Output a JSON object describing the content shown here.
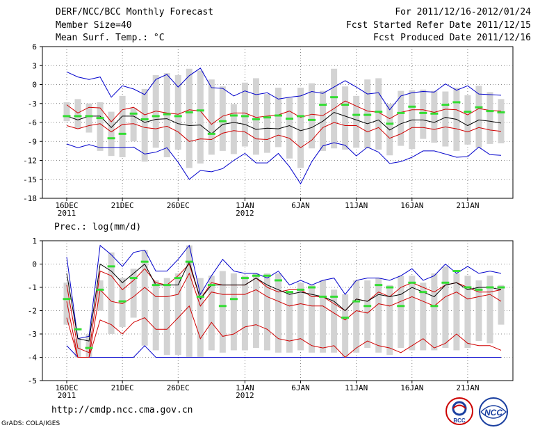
{
  "header": {
    "title": "DERF/NCC/BCC Monthly Forecast",
    "member_size": "Member Size=40",
    "variable": "Mean Surf. Temp.: °C",
    "period": "For 2011/12/16-2012/01/24",
    "started": "Fcst Started Refer Date 2011/12/15",
    "produced": "Fcst Produced Date 2011/12/16"
  },
  "footer": {
    "url": "http://cmdp.ncc.cma.gov.cn",
    "credit": "GrADS: COLA/IGES",
    "logo_left_text": "BCC",
    "logo_right_text": "NCC"
  },
  "colors": {
    "range": "#0000cc",
    "quartile": "#d00000",
    "mean": "#000000",
    "obs": "#33dd33",
    "box": "#d3d3d3",
    "grid": "#666666"
  },
  "chart_data": [
    {
      "type": "box",
      "title": "",
      "ylabel": "Mean Surf. Temp.: °C",
      "ylim": [
        -18,
        6
      ],
      "yticks": [
        6,
        3,
        0,
        -3,
        -6,
        -9,
        -12,
        -15,
        -18
      ],
      "x_tick_days": [
        0,
        5,
        10,
        16,
        21,
        26,
        31,
        36
      ],
      "x_ticklabels": [
        {
          "text": "16DEC",
          "sub": "2011"
        },
        {
          "text": "21DEC",
          "sub": ""
        },
        {
          "text": "26DEC",
          "sub": ""
        },
        {
          "text": "1JAN",
          "sub": "2012"
        },
        {
          "text": "6JAN",
          "sub": ""
        },
        {
          "text": "11JAN",
          "sub": ""
        },
        {
          "text": "16JAN",
          "sub": ""
        },
        {
          "text": "21JAN",
          "sub": ""
        }
      ],
      "series": [
        {
          "name": "max",
          "values": [
            2.0,
            1.2,
            0.8,
            1.2,
            -2.0,
            -0.2,
            -0.7,
            -1.6,
            0.8,
            1.6,
            -0.4,
            1.4,
            2.6,
            -0.5,
            -0.6,
            -1.8,
            -1.0,
            -1.6,
            -1.3,
            -2.3,
            -2.0,
            -1.8,
            -1.1,
            -1.4,
            -0.4,
            0.6,
            -0.4,
            -1.5,
            -1.3,
            -4.0,
            -1.8,
            -1.3,
            -1.1,
            -1.2,
            0.1,
            -0.9,
            -0.2,
            -1.5,
            -1.6,
            -1.7
          ]
        },
        {
          "name": "upper_quartile",
          "values": [
            -3.2,
            -4.5,
            -3.6,
            -3.7,
            -5.9,
            -4.0,
            -3.6,
            -4.8,
            -4.2,
            -4.5,
            -4.7,
            -4.0,
            -4.2,
            -6.3,
            -5.0,
            -4.5,
            -4.5,
            -5.2,
            -5.0,
            -4.8,
            -4.2,
            -5.2,
            -4.7,
            -4.9,
            -3.8,
            -2.6,
            -3.4,
            -4.2,
            -4.4,
            -5.4,
            -4.4,
            -4.0,
            -4.0,
            -4.4,
            -3.9,
            -4.0,
            -4.8,
            -3.8,
            -4.1,
            -4.2
          ]
        },
        {
          "name": "mean",
          "values": [
            -5.0,
            -5.6,
            -5.0,
            -5.0,
            -6.8,
            -5.0,
            -5.0,
            -6.0,
            -5.5,
            -5.4,
            -6.2,
            -6.5,
            -6.4,
            -7.8,
            -6.3,
            -6.0,
            -6.3,
            -7.1,
            -6.9,
            -7.0,
            -6.5,
            -7.3,
            -6.8,
            -5.8,
            -4.4,
            -5.0,
            -5.6,
            -6.2,
            -5.6,
            -7.2,
            -6.2,
            -5.6,
            -5.6,
            -6.0,
            -5.2,
            -5.5,
            -6.5,
            -5.6,
            -5.8,
            -6.1
          ]
        },
        {
          "name": "lower_quartile",
          "values": [
            -6.5,
            -7.0,
            -6.5,
            -6.2,
            -7.5,
            -6.3,
            -6.2,
            -6.8,
            -7.0,
            -6.6,
            -7.5,
            -9.0,
            -8.6,
            -8.7,
            -7.7,
            -7.3,
            -7.5,
            -8.6,
            -8.7,
            -8.0,
            -8.5,
            -10.0,
            -8.8,
            -6.8,
            -6.0,
            -6.5,
            -6.5,
            -7.5,
            -6.8,
            -8.5,
            -7.8,
            -6.8,
            -6.8,
            -7.1,
            -6.7,
            -7.0,
            -7.5,
            -6.8,
            -7.2,
            -7.4
          ]
        },
        {
          "name": "min",
          "values": [
            -9.4,
            -10.0,
            -9.5,
            -10.0,
            -10.0,
            -10.0,
            -9.9,
            -11.0,
            -10.7,
            -10.0,
            -12.3,
            -15.0,
            -13.6,
            -13.8,
            -13.3,
            -12.0,
            -10.9,
            -12.4,
            -12.4,
            -10.9,
            -13.0,
            -15.7,
            -12.2,
            -9.7,
            -9.2,
            -9.6,
            -11.3,
            -9.9,
            -10.7,
            -12.5,
            -12.2,
            -11.5,
            -10.5,
            -10.5,
            -11.0,
            -11.5,
            -11.4,
            -9.9,
            -11.1,
            -11.2
          ]
        },
        {
          "name": "observed",
          "values": [
            -5.0,
            -5.0,
            -5.0,
            -5.3,
            -8.5,
            -7.8,
            -4.6,
            -5.5,
            -5.0,
            -4.7,
            -5.0,
            -4.4,
            -4.1,
            -7.8,
            -5.8,
            -4.9,
            -5.0,
            -5.5,
            -5.2,
            -4.9,
            -5.4,
            -5.0,
            -5.6,
            -3.2,
            -2.0,
            -3.2,
            -4.8,
            -4.8,
            -4.3,
            -6.2,
            -4.5,
            -3.5,
            -4.5,
            -4.6,
            -3.2,
            -2.8,
            -4.3,
            -3.6,
            -4.2,
            -4.4
          ]
        },
        {
          "name": "box_top",
          "values": [
            -2.8,
            -2.3,
            -3.0,
            -2.8,
            -4.3,
            -1.8,
            -3.7,
            -0.7,
            1.5,
            1.8,
            1.5,
            2.5,
            2.2,
            0.8,
            -0.3,
            -3.1,
            0.3,
            1.0,
            -1.5,
            -0.5,
            -2.1,
            -0.5,
            0.2,
            -1.0,
            2.5,
            -0.3,
            -1.8,
            0.8,
            1.0,
            -3.1,
            -1.0,
            -0.9,
            -0.8,
            -1.0,
            -1.1,
            -0.5,
            -1.7,
            -0.2,
            -1.2,
            -2.3
          ]
        },
        {
          "name": "box_bottom",
          "values": [
            -5.8,
            -7.0,
            -7.6,
            -10.5,
            -11.3,
            -11.5,
            -9.0,
            -12.2,
            -10.0,
            -11.5,
            -10.3,
            -13.2,
            -12.5,
            -11.1,
            -10.5,
            -11.0,
            -9.8,
            -11.1,
            -10.8,
            -9.9,
            -11.7,
            -13.2,
            -10.1,
            -10.5,
            -10.1,
            -10.3,
            -10.0,
            -10.1,
            -10.3,
            -11.2,
            -9.7,
            -10.2,
            -8.6,
            -9.2,
            -9.8,
            -10.5,
            -9.5,
            -10.0,
            -9.4,
            -9.3
          ]
        }
      ]
    },
    {
      "type": "box",
      "title": "Prec.: log(mm/d)",
      "ylabel": "Prec.: log(mm/d)",
      "ylim": [
        -5,
        1
      ],
      "yticks": [
        1,
        0,
        -1,
        -2,
        -3,
        -4,
        -5
      ],
      "x_tick_days": [
        0,
        5,
        10,
        16,
        21,
        26,
        31,
        36
      ],
      "x_ticklabels": [
        {
          "text": "16DEC",
          "sub": "2011"
        },
        {
          "text": "21DEC",
          "sub": ""
        },
        {
          "text": "26DEC",
          "sub": ""
        },
        {
          "text": "1JAN",
          "sub": "2012"
        },
        {
          "text": "6JAN",
          "sub": ""
        },
        {
          "text": "11JAN",
          "sub": ""
        },
        {
          "text": "16JAN",
          "sub": ""
        },
        {
          "text": "21JAN",
          "sub": ""
        }
      ],
      "series": [
        {
          "name": "max",
          "values": [
            0.3,
            -3.2,
            -3.1,
            0.8,
            0.4,
            -0.1,
            0.5,
            0.6,
            -0.3,
            -0.3,
            0.2,
            0.8,
            -1.3,
            -0.5,
            0.2,
            -0.3,
            -0.4,
            -0.4,
            -0.6,
            -0.3,
            -0.9,
            -0.7,
            -0.9,
            -0.7,
            -0.6,
            -1.3,
            -0.7,
            -0.6,
            -0.6,
            -0.7,
            -0.5,
            -0.2,
            -0.7,
            -0.5,
            0.0,
            -0.4,
            -0.1,
            -0.4,
            -0.3,
            -0.4
          ]
        },
        {
          "name": "upper_quartile",
          "values": [
            -0.9,
            -3.6,
            -3.8,
            -0.3,
            -0.5,
            -1.1,
            -0.7,
            -0.2,
            -0.8,
            -0.9,
            -0.5,
            0.0,
            -1.5,
            -0.8,
            -0.9,
            -0.9,
            -0.9,
            -0.6,
            -1.0,
            -1.2,
            -1.1,
            -1.1,
            -1.4,
            -1.4,
            -1.7,
            -2.0,
            -1.5,
            -1.6,
            -1.2,
            -1.4,
            -1.0,
            -0.8,
            -1.0,
            -1.2,
            -0.9,
            -0.8,
            -1.0,
            -1.2,
            -1.2,
            -1.1
          ]
        },
        {
          "name": "mean",
          "values": [
            -0.4,
            -3.2,
            -3.3,
            0.0,
            -0.3,
            -0.8,
            -0.4,
            0.0,
            -0.9,
            -0.9,
            -0.9,
            0.1,
            -1.5,
            -0.9,
            -0.9,
            -0.9,
            -0.9,
            -0.6,
            -0.9,
            -1.1,
            -1.3,
            -1.2,
            -1.3,
            -1.4,
            -1.6,
            -2.0,
            -1.5,
            -1.6,
            -1.3,
            -1.4,
            -1.3,
            -1.0,
            -1.2,
            -1.4,
            -0.9,
            -0.8,
            -1.1,
            -1.0,
            -1.0,
            -1.1
          ]
        },
        {
          "name": "lower_quartile",
          "values": [
            -1.6,
            -4.0,
            -4.0,
            -1.1,
            -1.6,
            -1.7,
            -1.4,
            -1.0,
            -1.4,
            -1.4,
            -1.3,
            -0.4,
            -1.8,
            -1.2,
            -1.3,
            -1.3,
            -1.3,
            -1.1,
            -1.4,
            -1.6,
            -1.8,
            -1.7,
            -1.8,
            -1.8,
            -2.1,
            -2.4,
            -2.0,
            -2.1,
            -1.7,
            -1.8,
            -1.6,
            -1.4,
            -1.6,
            -1.8,
            -1.4,
            -1.2,
            -1.5,
            -1.4,
            -1.3,
            -1.6
          ]
        },
        {
          "name": "lowest_quartile_line",
          "values": [
            -2.3,
            -4.0,
            -4.0,
            -2.4,
            -2.6,
            -3.0,
            -2.5,
            -2.3,
            -2.8,
            -2.8,
            -2.3,
            -1.8,
            -3.2,
            -2.5,
            -3.1,
            -3.0,
            -2.7,
            -2.6,
            -2.8,
            -3.2,
            -3.3,
            -3.2,
            -3.5,
            -3.6,
            -3.5,
            -4.0,
            -3.6,
            -3.3,
            -3.5,
            -3.6,
            -3.8,
            -3.5,
            -3.2,
            -3.6,
            -3.4,
            -3.0,
            -3.4,
            -3.5,
            -3.5,
            -3.7
          ]
        },
        {
          "name": "min",
          "values": [
            -3.5,
            -4.0,
            -4.0,
            -4.0,
            -4.0,
            -4.0,
            -4.0,
            -3.5,
            -4.0,
            -4.0,
            -4.0,
            -4.0,
            -4.0,
            -4.0,
            -4.0,
            -4.0,
            -4.0,
            -4.0,
            -4.0,
            -4.0,
            -4.0,
            -4.0,
            -4.0,
            -4.0,
            -4.0,
            -4.0,
            -4.0,
            -4.0,
            -4.0,
            -4.0,
            -4.0,
            -4.0,
            -4.0,
            -4.0,
            -4.0,
            -4.0,
            -4.0,
            -4.0,
            -4.0,
            -4.0
          ]
        },
        {
          "name": "observed",
          "values": [
            -1.5,
            -2.8,
            -3.6,
            -1.1,
            -0.1,
            -1.6,
            -0.6,
            0.1,
            -0.9,
            -0.9,
            -0.6,
            0.1,
            -1.4,
            -0.9,
            -1.8,
            -1.5,
            -0.6,
            -0.5,
            -0.5,
            -0.7,
            -1.2,
            -1.1,
            -1.0,
            -1.4,
            -1.4,
            -2.3,
            -1.6,
            -1.8,
            -0.9,
            -1.0,
            -1.8,
            -0.8,
            -1.2,
            -1.8,
            -0.8,
            -0.3,
            -1.0,
            -1.1,
            -1.0,
            -1.0
          ]
        },
        {
          "name": "box_top",
          "values": [
            -0.8,
            -3.2,
            -3.0,
            -0.7,
            0.5,
            -0.6,
            -0.2,
            0.6,
            -0.7,
            -0.6,
            -0.4,
            0.8,
            -0.6,
            -0.5,
            -0.3,
            -0.4,
            -0.5,
            -0.4,
            -0.4,
            -0.4,
            -1.2,
            -0.8,
            -0.9,
            -0.7,
            -1.1,
            -1.3,
            -0.7,
            -0.7,
            -0.6,
            -0.9,
            -0.5,
            -0.5,
            -0.8,
            -0.4,
            -0.1,
            -0.4,
            -0.5,
            -0.7,
            -0.5,
            -0.9
          ]
        },
        {
          "name": "box_bottom",
          "values": [
            -2.6,
            -4.0,
            -4.0,
            -2.0,
            -3.0,
            -2.7,
            -2.3,
            -3.5,
            -3.7,
            -3.9,
            -3.9,
            -4.0,
            -4.0,
            -3.7,
            -3.8,
            -3.7,
            -3.7,
            -3.6,
            -3.7,
            -3.8,
            -3.8,
            -3.7,
            -3.8,
            -3.8,
            -3.8,
            -4.0,
            -3.8,
            -3.6,
            -3.8,
            -3.9,
            -3.6,
            -3.7,
            -3.7,
            -3.7,
            -3.6,
            -3.7,
            -3.6,
            -3.3,
            -3.4,
            -2.6
          ]
        }
      ]
    }
  ]
}
